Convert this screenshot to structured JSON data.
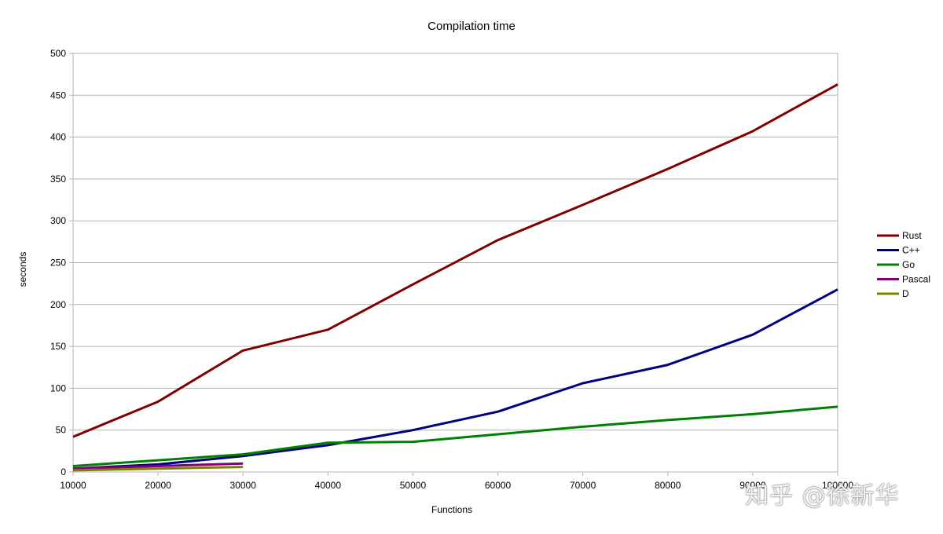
{
  "chart_data": {
    "type": "line",
    "title": "Compilation time",
    "xlabel": "Functions",
    "ylabel": "seconds",
    "x": [
      10000,
      20000,
      30000,
      40000,
      50000,
      60000,
      70000,
      80000,
      90000,
      100000
    ],
    "xlim": [
      10000,
      100000
    ],
    "ylim": [
      0,
      500
    ],
    "yticks": [
      0,
      50,
      100,
      150,
      200,
      250,
      300,
      350,
      400,
      450,
      500
    ],
    "grid": true,
    "legend_position": "right",
    "series": [
      {
        "name": "Rust",
        "color": "#800000",
        "x": [
          10000,
          20000,
          30000,
          40000,
          50000,
          60000,
          70000,
          80000,
          90000,
          100000
        ],
        "values": [
          42,
          84,
          145,
          170,
          224,
          277,
          319,
          362,
          407,
          463
        ]
      },
      {
        "name": "C++",
        "color": "#000080",
        "x": [
          10000,
          20000,
          30000,
          40000,
          50000,
          60000,
          70000,
          80000,
          90000,
          100000
        ],
        "values": [
          4,
          9,
          19,
          32,
          50,
          72,
          106,
          128,
          164,
          218
        ]
      },
      {
        "name": "Go",
        "color": "#008000",
        "x": [
          10000,
          20000,
          30000,
          40000,
          50000,
          60000,
          70000,
          80000,
          90000,
          100000
        ],
        "values": [
          7,
          14,
          21,
          35,
          36,
          45,
          54,
          62,
          69,
          78
        ]
      },
      {
        "name": "Pascal",
        "color": "#800080",
        "x": [
          10000,
          20000,
          30000
        ],
        "values": [
          4,
          7,
          10
        ]
      },
      {
        "name": "D",
        "color": "#808000",
        "x": [
          10000,
          20000,
          30000
        ],
        "values": [
          2,
          4,
          6
        ]
      }
    ]
  },
  "watermark": "知乎 @徐新华"
}
